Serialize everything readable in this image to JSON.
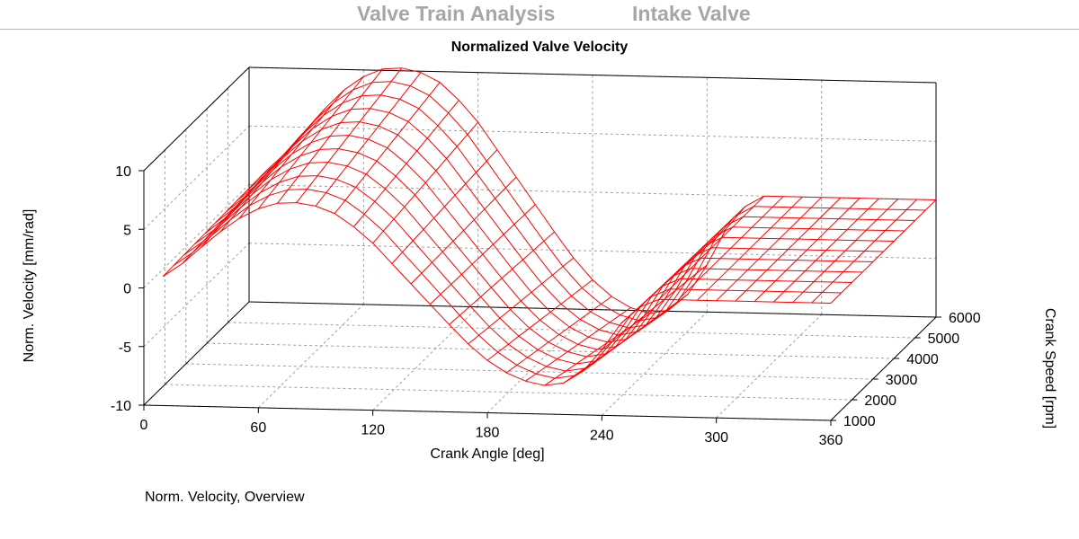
{
  "header": {
    "left_title": "Valve Train Analysis",
    "right_title": "Intake Valve"
  },
  "caption": "Norm. Velocity, Overview",
  "colors": {
    "surface": "#ff0000",
    "header_text": "#a6a6a6",
    "grid": "#a0a0a0",
    "axis": "#000000"
  },
  "chart_data": {
    "type": "surface3d",
    "title": "Normalized Valve Velocity",
    "xlabel": "Crank Angle [deg]",
    "ylabel": "Crank Speed [rpm]",
    "zlabel": "Norm. Velocity [mm/rad]",
    "xlim": [
      0,
      360
    ],
    "ylim": [
      1000,
      6000
    ],
    "zlim": [
      -10,
      10
    ],
    "x_ticks": [
      0,
      60,
      120,
      180,
      240,
      300,
      360
    ],
    "y_ticks": [
      1000,
      2000,
      3000,
      4000,
      5000,
      6000
    ],
    "z_ticks": [
      10,
      5,
      0,
      -5,
      -10
    ],
    "grid": true,
    "crank_speed_rpm": [
      1000,
      1500,
      2000,
      2500,
      3000,
      3500,
      4000,
      4500,
      5000,
      5500,
      6000
    ],
    "crank_angle_deg": [
      10,
      20,
      30,
      40,
      50,
      60,
      70,
      80,
      90,
      100,
      110,
      120,
      130,
      140,
      150,
      160,
      170,
      180,
      190,
      200,
      210,
      220,
      230,
      240,
      250,
      260,
      270,
      280,
      290,
      300,
      310,
      320,
      330,
      340,
      350,
      360
    ],
    "base_velocity_profile": [
      1.2,
      2.5,
      4.2,
      5.8,
      7.2,
      8.2,
      8.8,
      8.9,
      8.6,
      7.9,
      6.6,
      5.0,
      3.0,
      1.0,
      -1.0,
      -3.0,
      -4.9,
      -6.5,
      -7.7,
      -8.5,
      -8.9,
      -8.6,
      -7.4,
      -5.2,
      -2.5,
      -0.8,
      0,
      0,
      0,
      0,
      0,
      0,
      0,
      0,
      0,
      0
    ],
    "speed_amplitude_variation": 0.15
  }
}
